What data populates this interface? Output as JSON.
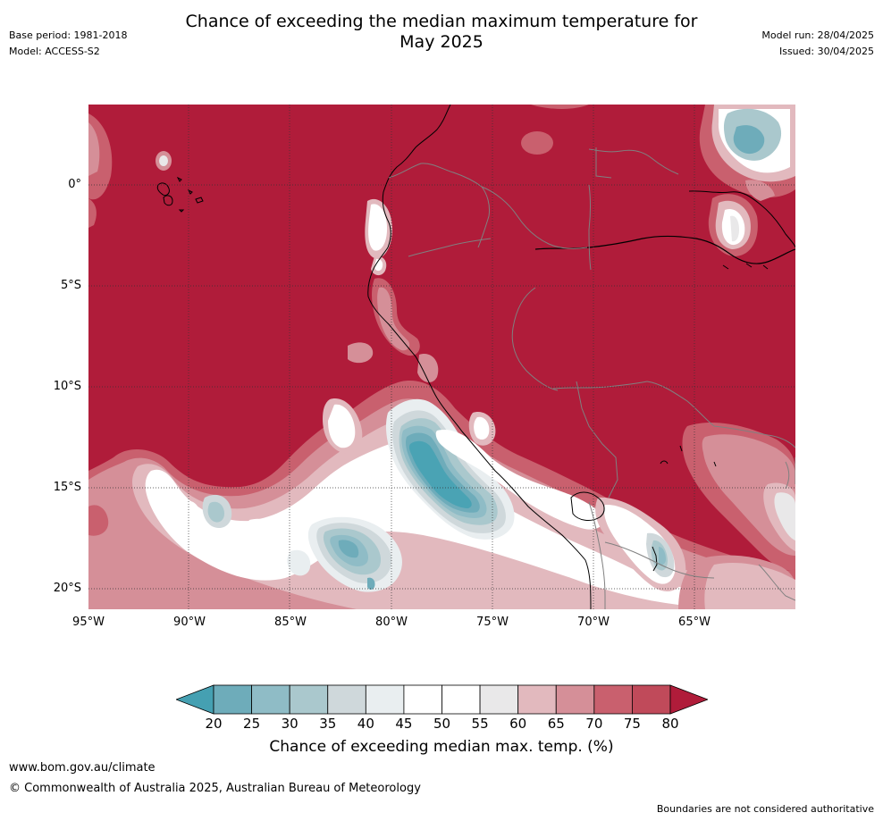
{
  "header": {
    "title_line1": "Chance of exceeding the median maximum temperature for",
    "title_line2": "May 2025",
    "base_period": "Base period: 1981-2018",
    "model": "Model: ACCESS-S2",
    "model_run": "Model run: 28/04/2025",
    "issued": "Issued: 30/04/2025"
  },
  "map": {
    "lat_labels": [
      "0°",
      "5°S",
      "10°S",
      "15°S",
      "20°S"
    ],
    "lon_labels": [
      "95°W",
      "90°W",
      "85°W",
      "80°W",
      "75°W",
      "70°W",
      "65°W"
    ],
    "background_color": "#b01c3a"
  },
  "colorbar": {
    "ticks": [
      "20",
      "25",
      "30",
      "35",
      "40",
      "45",
      "50",
      "55",
      "60",
      "65",
      "70",
      "75",
      "80"
    ],
    "colors": [
      "#4aa3b4",
      "#6eacba",
      "#8fbcc6",
      "#aac8cd",
      "#cfd8db",
      "#e9eef0",
      "#ffffff",
      "#ffffff",
      "#e9e8e9",
      "#e2b9be",
      "#d58f98",
      "#c9606e",
      "#c04a5a"
    ],
    "under_color": "#45a0b2",
    "over_color": "#b01c3a",
    "title": "Chance of exceeding median max. temp. (%)"
  },
  "footer": {
    "website": "www.bom.gov.au/climate",
    "copyright": "© Commonwealth of Australia 2025, Australian Bureau of Meteorology",
    "disclaimer": "Boundaries are not considered authoritative"
  }
}
